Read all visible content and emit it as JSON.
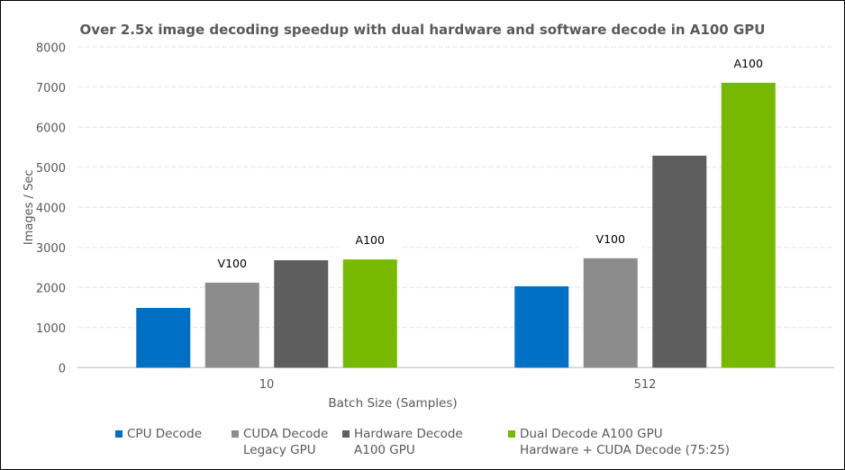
{
  "chart_data": {
    "type": "bar",
    "title": "Over 2.5x image decoding speedup with dual hardware and software decode in A100 GPU",
    "xlabel": "Batch Size (Samples)",
    "ylabel": "Images / Sec",
    "ylim": [
      0,
      8000
    ],
    "yticks": [
      "0",
      "1000",
      "2000",
      "3000",
      "4000",
      "5000",
      "6000",
      "7000",
      "8000"
    ],
    "grid": true,
    "legend_position": "bottom",
    "categories": [
      "10",
      "512"
    ],
    "series": [
      {
        "name": "CPU Decode",
        "color": "#0070C4",
        "values": [
          1490,
          2030
        ],
        "annotations": [
          "",
          ""
        ]
      },
      {
        "name": "CUDA Decode\nLegacy GPU",
        "color": "#8C8C8C",
        "values": [
          2120,
          2730
        ],
        "annotations": [
          "V100",
          "V100"
        ]
      },
      {
        "name": "Hardware Decode\nA100 GPU",
        "color": "#5E5E5E",
        "values": [
          2680,
          5290
        ],
        "annotations": [
          "",
          ""
        ]
      },
      {
        "name": "Dual Decode A100 GPU\nHardware + CUDA Decode (75:25)",
        "color": "#76B900",
        "values": [
          2700,
          7110
        ],
        "annotations": [
          "A100",
          "A100"
        ]
      }
    ]
  }
}
